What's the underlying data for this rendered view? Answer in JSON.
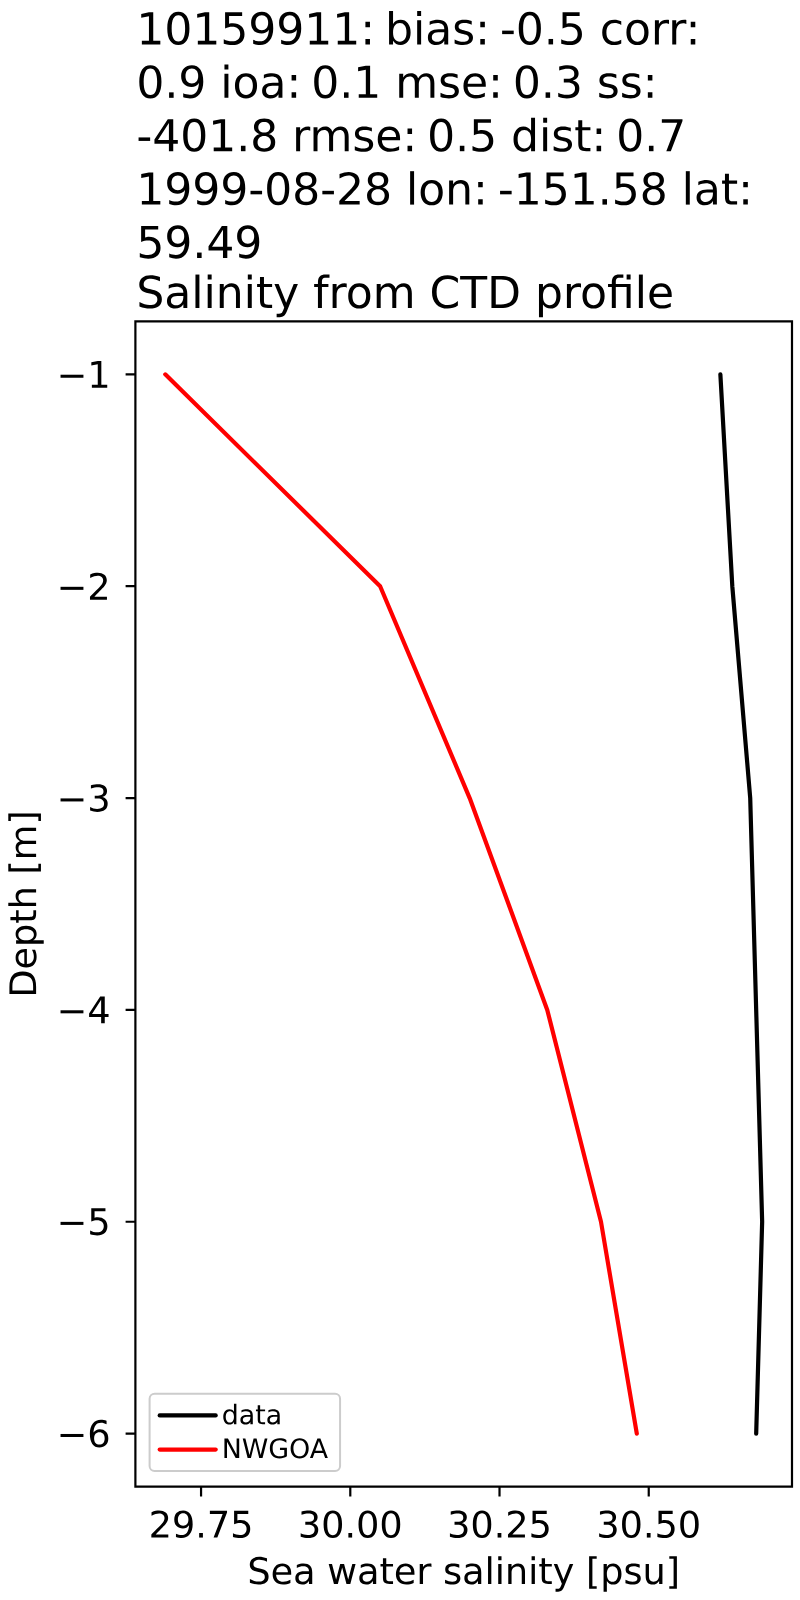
{
  "chart_data": {
    "type": "line",
    "title": "10159911: bias: -0.5  corr: 0.9  ioa: 0.1  mse: 0.3  ss: -401.8  rmse: 0.5  dist: 0.7 1999-08-28 lon: -151.58 lat: 59.49",
    "subtitle": "Salinity from CTD profile",
    "xlabel": "Sea water salinity [psu]",
    "ylabel": "Depth [m]",
    "series": [
      {
        "name": "data",
        "color": "#000000",
        "x": [
          30.62,
          30.64,
          30.67,
          30.68,
          30.69,
          30.68
        ],
        "values": [
          -1,
          -2,
          -3,
          -4,
          -5,
          -6
        ]
      },
      {
        "name": "NWGOA",
        "color": "#ff0000",
        "x": [
          29.69,
          30.05,
          30.2,
          30.33,
          30.42,
          30.48
        ],
        "values": [
          -1,
          -2,
          -3,
          -4,
          -5,
          -6
        ]
      }
    ],
    "xlim": [
      29.64,
      30.74
    ],
    "ylim": [
      -6.25,
      -0.75
    ],
    "xticks": [
      29.75,
      {
        "value": 30.0,
        "label": "30.00"
      },
      30.25,
      {
        "value": 30.5,
        "label": "30.50"
      }
    ],
    "yticks": [
      {
        "value": -1,
        "label": "−1"
      },
      {
        "value": -2,
        "label": "−2"
      },
      {
        "value": -3,
        "label": "−3"
      },
      {
        "value": -4,
        "label": "−4"
      },
      {
        "value": -5,
        "label": "−5"
      },
      {
        "value": -6,
        "label": "−6"
      }
    ],
    "legend": "bottom left",
    "marker": "none",
    "line_style": "solid"
  }
}
